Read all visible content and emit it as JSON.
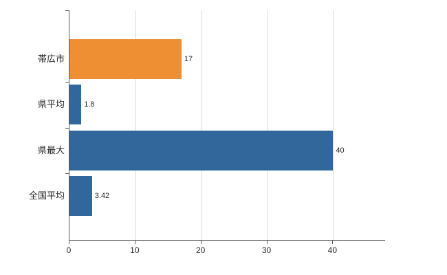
{
  "chart_data": {
    "type": "bar",
    "orientation": "horizontal",
    "title": "",
    "categories": [
      "帯広市",
      "県平均",
      "県最大",
      "全国平均"
    ],
    "values": [
      17,
      1.8,
      40,
      3.42
    ],
    "value_labels": [
      "17",
      "1.8",
      "40",
      "3.42"
    ],
    "series_colors": [
      "#EE8F33",
      "#31679B",
      "#31679B",
      "#31679B"
    ],
    "xlabel": "",
    "ylabel": "",
    "xlim": [
      0,
      48
    ],
    "x_ticks": [
      0,
      10,
      20,
      30,
      40
    ],
    "grid": true,
    "legend": false
  },
  "colors": {
    "highlight_bar": "#EE8F33",
    "default_bar": "#31679B",
    "axis": "#595959",
    "grid": "#D9D9D9",
    "text": "#262626",
    "background": "#FFFFFF"
  }
}
